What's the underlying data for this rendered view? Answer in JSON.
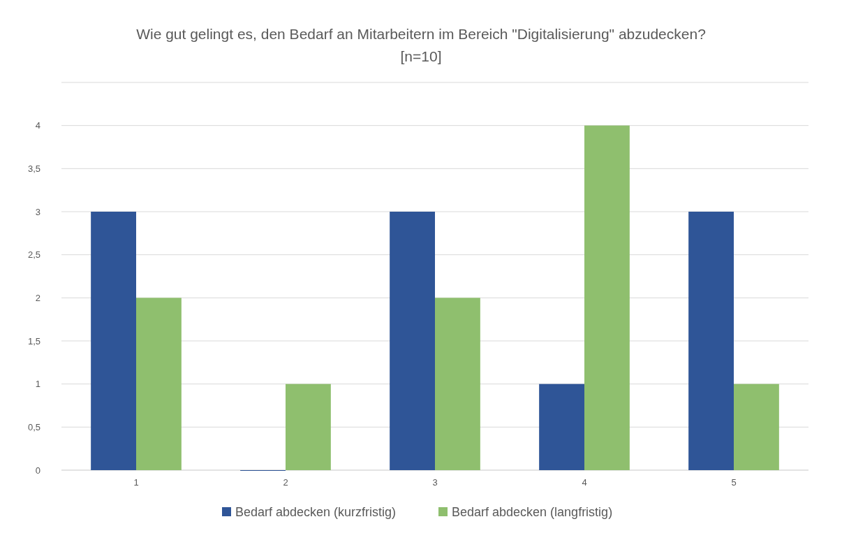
{
  "chart_data": {
    "type": "bar",
    "title": "Wie gut gelingt es, den Bedarf an Mitarbeitern im Bereich \"Digitalisierung\" abzudecken?",
    "subtitle": "[n=10]",
    "categories": [
      "1",
      "2",
      "3",
      "4",
      "5"
    ],
    "series": [
      {
        "name": "Bedarf abdecken (kurzfristig)",
        "color": "#2f5597",
        "values": [
          3,
          0,
          3,
          1,
          3
        ]
      },
      {
        "name": "Bedarf abdecken (langfristig)",
        "color": "#8fbf6e",
        "values": [
          2,
          1,
          2,
          4,
          1
        ]
      }
    ],
    "ylim": [
      0,
      4.5
    ],
    "yticks": [
      0,
      {
        "value": 0.5,
        "label": "0,5"
      },
      1,
      {
        "value": 1.5,
        "label": "1,5"
      },
      2,
      {
        "value": 2.5,
        "label": "2,5"
      },
      3,
      {
        "value": 3.5,
        "label": "3,5"
      },
      4,
      {
        "value": 4.5,
        "label": null
      }
    ],
    "grid": "y",
    "legend": "bottom"
  }
}
